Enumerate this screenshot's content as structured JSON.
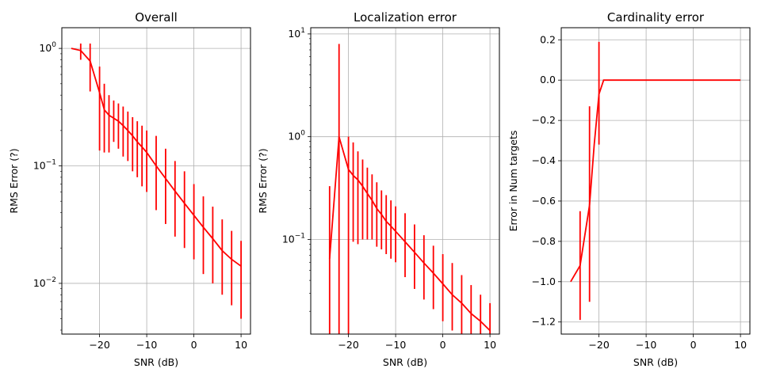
{
  "chart_data": [
    {
      "type": "line",
      "title": "Overall",
      "xlabel": "SNR (dB)",
      "ylabel": "RMS Error (?)",
      "yscale": "log",
      "xlim": [
        -28,
        12
      ],
      "ylim": [
        0.0037,
        1.5
      ],
      "grid": true,
      "xticks": [
        -20,
        -10,
        0,
        10
      ],
      "yticks": [
        {
          "v": 0.01,
          "base": "10",
          "exp": "−2"
        },
        {
          "v": 0.1,
          "base": "10",
          "exp": "−1"
        },
        {
          "v": 1,
          "base": "10",
          "exp": "0"
        }
      ],
      "color": "#ff0000",
      "x": [
        -26,
        -24,
        -22,
        -20,
        -19,
        -18,
        -17,
        -16,
        -15,
        -14,
        -13,
        -12,
        -11,
        -10,
        -8,
        -6,
        -4,
        -2,
        0,
        2,
        4,
        6,
        8,
        10
      ],
      "y": [
        1.0,
        0.96,
        0.78,
        0.42,
        0.3,
        0.27,
        0.255,
        0.24,
        0.22,
        0.2,
        0.18,
        0.16,
        0.145,
        0.13,
        0.1,
        0.078,
        0.061,
        0.048,
        0.038,
        0.03,
        0.024,
        0.019,
        0.016,
        0.014
      ],
      "err_x": [
        -24,
        -22,
        -20,
        -19,
        -18,
        -17,
        -16,
        -15,
        -14,
        -13,
        -12,
        -11,
        -10,
        -8,
        -6,
        -4,
        -2,
        0,
        2,
        4,
        6,
        8,
        10
      ],
      "err_low": [
        0.8,
        0.43,
        0.135,
        0.13,
        0.13,
        0.16,
        0.14,
        0.12,
        0.11,
        0.09,
        0.08,
        0.067,
        0.06,
        0.042,
        0.032,
        0.025,
        0.02,
        0.016,
        0.012,
        0.01,
        0.008,
        0.0065,
        0.005
      ],
      "err_high": [
        1.1,
        1.1,
        0.7,
        0.5,
        0.4,
        0.36,
        0.34,
        0.32,
        0.29,
        0.26,
        0.24,
        0.22,
        0.2,
        0.18,
        0.14,
        0.11,
        0.09,
        0.07,
        0.055,
        0.045,
        0.035,
        0.028,
        0.023
      ]
    },
    {
      "type": "line",
      "title": "Localization error",
      "xlabel": "SNR (dB)",
      "ylabel": "RMS Error (?)",
      "yscale": "log",
      "xlim": [
        -28,
        12
      ],
      "ylim": [
        0.012,
        11.5
      ],
      "grid": true,
      "xticks": [
        -20,
        -10,
        0,
        10
      ],
      "yticks": [
        {
          "v": 0.1,
          "base": "10",
          "exp": "−1"
        },
        {
          "v": 1,
          "base": "10",
          "exp": "0"
        },
        {
          "v": 10,
          "base": "10",
          "exp": "1"
        }
      ],
      "color": "#ff0000",
      "x": [
        -24,
        -22,
        -20,
        -19,
        -18,
        -17,
        -16,
        -15,
        -14,
        -13,
        -12,
        -11,
        -10,
        -8,
        -6,
        -4,
        -2,
        0,
        2,
        4,
        6,
        8,
        10
      ],
      "y": [
        0.065,
        1.0,
        0.48,
        0.42,
        0.38,
        0.33,
        0.28,
        0.24,
        0.2,
        0.175,
        0.15,
        0.135,
        0.12,
        0.095,
        0.075,
        0.059,
        0.047,
        0.037,
        0.029,
        0.024,
        0.019,
        0.016,
        0.013
      ],
      "err_x": [
        -24,
        -22,
        -20,
        -19,
        -18,
        -17,
        -16,
        -15,
        -14,
        -13,
        -12,
        -11,
        -10,
        -8,
        -6,
        -4,
        -2,
        0,
        2,
        4,
        6,
        8,
        10
      ],
      "err_low": [
        0.012,
        0.012,
        0.012,
        0.095,
        0.09,
        0.1,
        0.1,
        0.1,
        0.085,
        0.08,
        0.072,
        0.065,
        0.06,
        0.043,
        0.033,
        0.026,
        0.021,
        0.016,
        0.013,
        0.012,
        0.012,
        0.012,
        0.012
      ],
      "err_high": [
        0.33,
        8.0,
        1.0,
        0.88,
        0.72,
        0.6,
        0.5,
        0.43,
        0.36,
        0.3,
        0.27,
        0.24,
        0.21,
        0.18,
        0.14,
        0.11,
        0.087,
        0.072,
        0.059,
        0.045,
        0.036,
        0.029,
        0.024
      ]
    },
    {
      "type": "line",
      "title": "Cardinality error",
      "xlabel": "SNR (dB)",
      "ylabel": "Error in Num targets",
      "yscale": "linear",
      "xlim": [
        -28,
        12
      ],
      "ylim": [
        -1.26,
        0.26
      ],
      "grid": true,
      "xticks": [
        -20,
        -10,
        0,
        10
      ],
      "yticks": [
        {
          "v": -1.2,
          "label": "−1.2"
        },
        {
          "v": -1.0,
          "label": "−1.0"
        },
        {
          "v": -0.8,
          "label": "−0.8"
        },
        {
          "v": -0.6,
          "label": "−0.6"
        },
        {
          "v": -0.4,
          "label": "−0.4"
        },
        {
          "v": -0.2,
          "label": "−0.2"
        },
        {
          "v": 0.0,
          "label": "0.0"
        },
        {
          "v": 0.2,
          "label": "0.2"
        }
      ],
      "color": "#ff0000",
      "x": [
        -26,
        -24,
        -22,
        -21,
        -20,
        -19,
        -18,
        -16,
        -14,
        -12,
        -10,
        -8,
        -6,
        -4,
        -2,
        0,
        2,
        4,
        6,
        8,
        10
      ],
      "y": [
        -1.0,
        -0.92,
        -0.62,
        -0.32,
        -0.07,
        0.0,
        0.0,
        0.0,
        0.0,
        0.0,
        0.0,
        0.0,
        0.0,
        0.0,
        0.0,
        0.0,
        0.0,
        0.0,
        0.0,
        0.0,
        0.0
      ],
      "err_x": [
        -24,
        -22,
        -20
      ],
      "err_low": [
        -1.19,
        -1.1,
        -0.32
      ],
      "err_high": [
        -0.65,
        -0.13,
        0.19
      ]
    }
  ]
}
